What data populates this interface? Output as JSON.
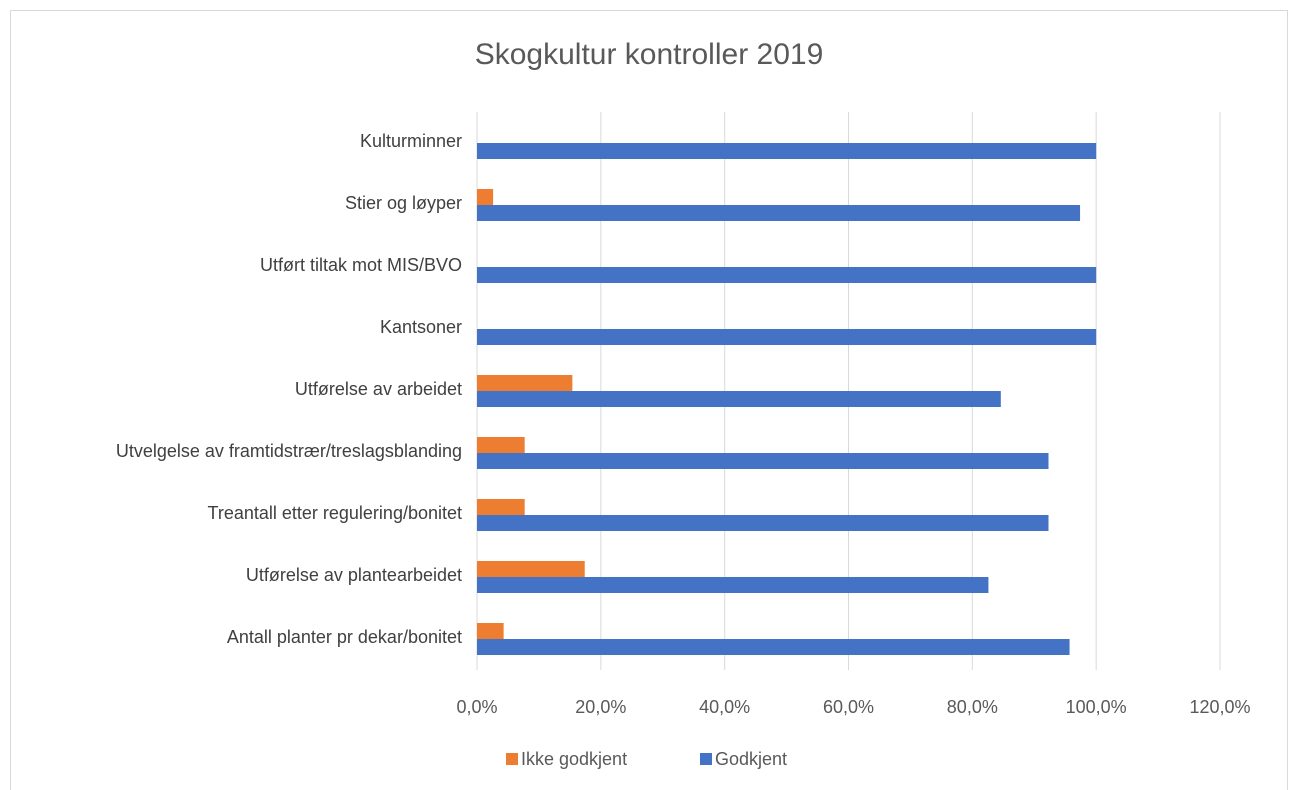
{
  "chart_data": {
    "type": "bar",
    "orientation": "horizontal",
    "title": "Skogkultur kontroller 2019",
    "categories": [
      "Kulturminner",
      "Stier og løyper",
      "Utført tiltak mot MIS/BVO",
      "Kantsoner",
      "Utførelse av arbeidet",
      "Utvelgelse av framtidstrær/treslagsblanding",
      "Treantall etter regulering/bonitet",
      "Utførelse av plantearbeidet",
      "Antall planter pr dekar/bonitet"
    ],
    "series": [
      {
        "name": "Ikke godkjent",
        "color": "#ed7d31",
        "values": [
          0,
          2.6,
          0,
          0,
          15.4,
          7.7,
          7.7,
          17.4,
          4.3
        ]
      },
      {
        "name": "Godkjent",
        "color": "#4472c4",
        "values": [
          100,
          97.4,
          100,
          100,
          84.6,
          92.3,
          92.3,
          82.6,
          95.7
        ]
      }
    ],
    "xlim": [
      0,
      120
    ],
    "xticks": [
      {
        "value": 0,
        "label": "0,0%"
      },
      {
        "value": 20,
        "label": "20,0%"
      },
      {
        "value": 40,
        "label": "40,0%"
      },
      {
        "value": 60,
        "label": "60,0%"
      },
      {
        "value": 80,
        "label": "80,0%"
      },
      {
        "value": 100,
        "label": "100,0%"
      },
      {
        "value": 120,
        "label": "120,0%"
      }
    ],
    "grid": true,
    "legend": "bottom"
  }
}
